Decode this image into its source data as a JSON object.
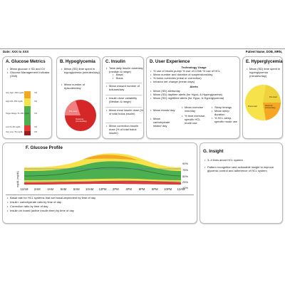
{
  "header": {
    "date": "Date: XXX to XXX",
    "patient": "Patient Name, DOB, MRN,"
  },
  "glucose_metrics": {
    "title": "A. Glucose Metrics",
    "items": [
      "Mean glucose ± SD and CV",
      "Glucose Management Indicator (GMI)"
    ],
    "tir_bars": [
      {
        "label": "Very high",
        "range": ">250 mg/dL",
        "pct": "X%",
        "color": "#f5a623"
      },
      {
        "label": "High",
        "range": "181–250 mg/dL",
        "pct": "X%",
        "color": "#f6e24a"
      },
      {
        "label": "Target Range",
        "range": "70–180 mg/dL",
        "pct": "X%",
        "color": "#4caf50"
      },
      {
        "label": "Low",
        "range": "54–69 mg/dL",
        "pct": "X%",
        "color": "#e53935"
      },
      {
        "label": "Very Low",
        "range": "<54 mg/dL",
        "pct": "X%",
        "color": "#9b1c1c"
      }
    ]
  },
  "hypoglycemia": {
    "title": "B. Hypoglycemia",
    "items": [
      "Mean (SD) time spent in hypoglycemia (minutes/day)",
      "Mean number of episodes/day"
    ],
    "pie_labels": [
      "Pre-meal",
      "Nocturnal (minutes/day)"
    ],
    "colors": {
      "small": "#f08080",
      "large": "#d62728"
    }
  },
  "insulin": {
    "title": "C. Insulin",
    "total": "Total daily insulin dose/day (median & range)",
    "subitems": [
      "Basal",
      "Bolus"
    ],
    "items": [
      "Mean missed number of boluses/day",
      "Insulin dose variability (Median & range)",
      "Mean meal insulin dose (% of total bolus insulin)",
      "Mean correction insulin dose (% of total bolus insulin)"
    ]
  },
  "user_experience": {
    "title": "D. User Experience",
    "tech_heading": "Technology Usage",
    "tech_items": [
      "% use of insulin pump/ % use of CGM/ % use of HCL",
      "Mean number and duration of suspensions/day",
      "% bolus overrides (meal or correction)",
      "Infusion set change (mean days)"
    ],
    "alerts_heading": "Alerts",
    "alert_items": [
      "Mean (SD) alerts/day",
      "Mean (SD) daytime alerts (for Hypo- & Hyperglycemia)",
      "Mean (SD) nighttime alerts (for Hypo- & Hyperglycemia)"
    ],
    "col1": [
      "Mean meals/ day",
      "Mean carbohydrate intake/ day"
    ],
    "col2": [
      "Mean exercise /min/day",
      "% time exercise-specific HCL mode use"
    ],
    "col3": [
      "Sleep timings",
      "Mean sleep duration",
      "% HCL sleep-specific mode use"
    ]
  },
  "hyperglycemia": {
    "title": "E. Hyperglycemia",
    "items": [
      "Mean (SD) time spent in hyperglycemia (minutes/day)"
    ],
    "pie_labels": [
      "Post-meal",
      "Pre-meal",
      "Nocturnal (minutes/day)"
    ],
    "colors": {
      "large": "#f6e24a",
      "mid": "#f5a623",
      "small": "#f7d84a"
    }
  },
  "glucose_profile": {
    "title": "F. Glucose Profile",
    "ylabel": "mg/dL (mg/dL)",
    "x_ticks": [
      "12AM",
      "2AM",
      "4AM",
      "6AM",
      "8AM",
      "10AM",
      "12PM",
      "2PM",
      "4PM",
      "6PM",
      "8PM",
      "10PM",
      "12AM"
    ],
    "percentile_labels": [
      "90%",
      "75%",
      "50%",
      "25%",
      "10%"
    ],
    "colors": {
      "outer": "#f6e24a",
      "inner": "#4caf50",
      "high": "#f5a623",
      "low": "#e53935",
      "median": "#2f6b2f",
      "target": "#3a78c2"
    },
    "notes": [
      "Basal rate for HCL systems that are basal-dependent by time of day",
      "Insulin: carbohydrate ratio by time of day",
      "Correction ratio by time of day",
      "Insulin on board (active insulin time) by time of day"
    ]
  },
  "insight": {
    "title": "G. Insight",
    "items": [
      "3–4 lines about HCL system",
      "Pattern recognition and actionable insight to improve glycemic control and adherence of HCL system"
    ]
  }
}
